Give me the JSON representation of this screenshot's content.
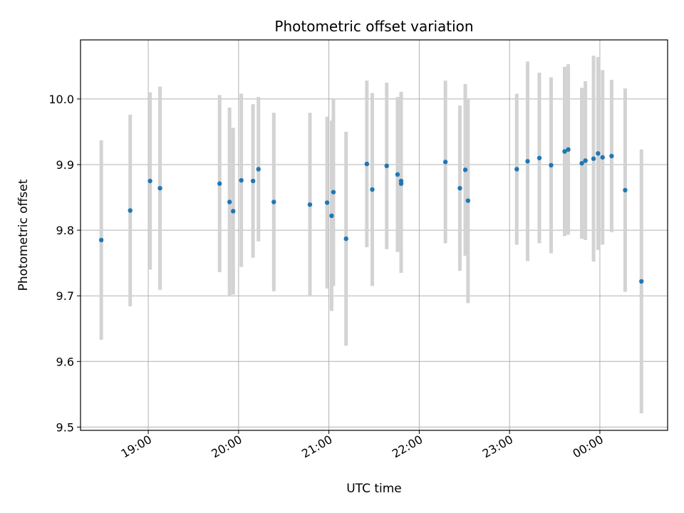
{
  "chart_data": {
    "type": "scatter",
    "title": "Photometric offset variation",
    "xlabel": "UTC time",
    "ylabel": "Photometric offset",
    "x_unit": "UTC time of day (hours, values past midnight continue above 24)",
    "xlim": [
      18.25,
      24.75
    ],
    "ylim": [
      9.495,
      10.09
    ],
    "x_ticks": [
      19,
      20,
      21,
      22,
      23,
      24
    ],
    "x_tick_labels": [
      "19:00",
      "20:00",
      "21:00",
      "22:00",
      "23:00",
      "00:00"
    ],
    "y_ticks": [
      9.5,
      9.6,
      9.7,
      9.8,
      9.9,
      10.0
    ],
    "y_tick_labels": [
      "9.5",
      "9.6",
      "9.7",
      "9.8",
      "9.9",
      "10.0"
    ],
    "grid": true,
    "legend": "none",
    "colors": {
      "marker": "#1f77b4",
      "errorbar": "#d3d3d3",
      "grid": "#b0b0b0"
    },
    "points": [
      {
        "x": 18.48,
        "y": 9.785,
        "err": 0.152
      },
      {
        "x": 18.8,
        "y": 9.83,
        "err": 0.146
      },
      {
        "x": 19.02,
        "y": 9.875,
        "err": 0.135
      },
      {
        "x": 19.13,
        "y": 9.864,
        "err": 0.155
      },
      {
        "x": 19.79,
        "y": 9.871,
        "err": 0.135
      },
      {
        "x": 19.9,
        "y": 9.843,
        "err": 0.144
      },
      {
        "x": 19.94,
        "y": 9.829,
        "err": 0.127
      },
      {
        "x": 20.03,
        "y": 9.876,
        "err": 0.132
      },
      {
        "x": 20.16,
        "y": 9.875,
        "err": 0.117
      },
      {
        "x": 20.22,
        "y": 9.893,
        "err": 0.11
      },
      {
        "x": 20.39,
        "y": 9.843,
        "err": 0.136
      },
      {
        "x": 20.79,
        "y": 9.839,
        "err": 0.14
      },
      {
        "x": 20.98,
        "y": 9.842,
        "err": 0.131
      },
      {
        "x": 21.03,
        "y": 9.822,
        "err": 0.145
      },
      {
        "x": 21.05,
        "y": 9.858,
        "err": 0.143
      },
      {
        "x": 21.19,
        "y": 9.787,
        "err": 0.163
      },
      {
        "x": 21.42,
        "y": 9.901,
        "err": 0.127
      },
      {
        "x": 21.48,
        "y": 9.862,
        "err": 0.147
      },
      {
        "x": 21.64,
        "y": 9.898,
        "err": 0.127
      },
      {
        "x": 21.76,
        "y": 9.885,
        "err": 0.118
      },
      {
        "x": 21.8,
        "y": 9.871,
        "err": 0.136
      },
      {
        "x": 21.8,
        "y": 9.875,
        "err": 0.136
      },
      {
        "x": 22.29,
        "y": 9.904,
        "err": 0.124
      },
      {
        "x": 22.45,
        "y": 9.864,
        "err": 0.126
      },
      {
        "x": 22.51,
        "y": 9.892,
        "err": 0.131
      },
      {
        "x": 22.54,
        "y": 9.845,
        "err": 0.156
      },
      {
        "x": 23.08,
        "y": 9.893,
        "err": 0.115
      },
      {
        "x": 23.2,
        "y": 9.905,
        "err": 0.152
      },
      {
        "x": 23.33,
        "y": 9.91,
        "err": 0.13
      },
      {
        "x": 23.46,
        "y": 9.899,
        "err": 0.134
      },
      {
        "x": 23.61,
        "y": 9.92,
        "err": 0.129
      },
      {
        "x": 23.65,
        "y": 9.923,
        "err": 0.13
      },
      {
        "x": 23.8,
        "y": 9.902,
        "err": 0.115
      },
      {
        "x": 23.84,
        "y": 9.906,
        "err": 0.121
      },
      {
        "x": 23.93,
        "y": 9.909,
        "err": 0.157
      },
      {
        "x": 23.98,
        "y": 9.917,
        "err": 0.147
      },
      {
        "x": 24.03,
        "y": 9.911,
        "err": 0.133
      },
      {
        "x": 24.13,
        "y": 9.913,
        "err": 0.116
      },
      {
        "x": 24.28,
        "y": 9.861,
        "err": 0.155
      },
      {
        "x": 24.46,
        "y": 9.722,
        "err": 0.201
      }
    ]
  }
}
